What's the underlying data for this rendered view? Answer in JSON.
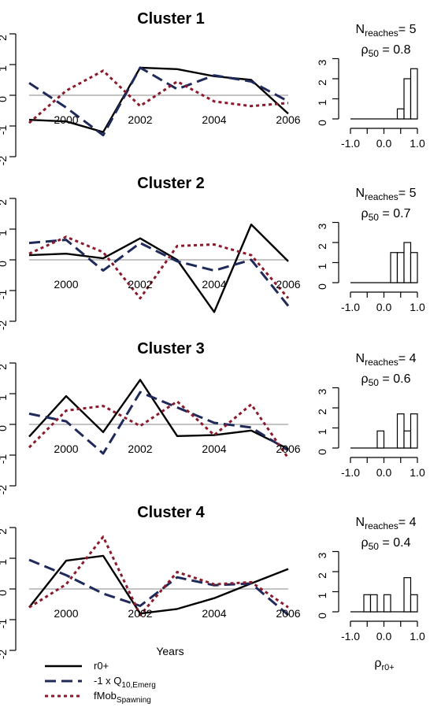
{
  "chart_data": [
    {
      "type": "line",
      "title": "Cluster 1",
      "x": [
        1999,
        2000,
        2001,
        2002,
        2003,
        2004,
        2005,
        2006
      ],
      "series": [
        {
          "key": "r0",
          "values": [
            -0.8,
            -0.85,
            -1.2,
            0.9,
            0.85,
            0.62,
            0.5,
            -0.6
          ]
        },
        {
          "key": "q10",
          "values": [
            0.4,
            -0.4,
            -1.3,
            0.9,
            0.2,
            0.65,
            0.45,
            -0.2
          ]
        },
        {
          "key": "fmob",
          "values": [
            -0.9,
            0.15,
            0.8,
            -0.35,
            0.45,
            -0.2,
            -0.35,
            -0.25
          ]
        }
      ],
      "xticks": [
        2000,
        2002,
        2004,
        2006
      ],
      "yticks": [
        -2,
        -1,
        0,
        1,
        2
      ],
      "xlim": [
        1999,
        2006
      ],
      "ylim": [
        -2,
        2
      ],
      "n_reaches_value": "5",
      "rho50_value": "0.8",
      "hist": {
        "bins": [
          [
            0.4,
            0.6
          ],
          [
            0.6,
            0.8
          ],
          [
            0.8,
            1.0
          ]
        ],
        "values": [
          0.5,
          2.0,
          2.5
        ],
        "xlim": [
          -1.0,
          1.0
        ],
        "ylim": [
          0,
          3
        ],
        "xticks": [
          "-1.0",
          "0.0",
          "1.0"
        ],
        "yticks": [
          0,
          1,
          2,
          3
        ]
      }
    },
    {
      "type": "line",
      "title": "Cluster 2",
      "x": [
        1999,
        2000,
        2001,
        2002,
        2003,
        2004,
        2005,
        2006
      ],
      "series": [
        {
          "key": "r0",
          "values": [
            0.15,
            0.2,
            0.05,
            0.7,
            0.0,
            -1.7,
            1.15,
            -0.05
          ]
        },
        {
          "key": "q10",
          "values": [
            0.55,
            0.65,
            -0.35,
            0.55,
            -0.05,
            -0.35,
            0.0,
            -1.5
          ]
        },
        {
          "key": "fmob",
          "values": [
            0.2,
            0.75,
            0.25,
            -1.25,
            0.45,
            0.5,
            0.15,
            -1.25
          ]
        }
      ],
      "xticks": [
        2000,
        2002,
        2004,
        2006
      ],
      "yticks": [
        -2,
        -1,
        0,
        1,
        2
      ],
      "xlim": [
        1999,
        2006
      ],
      "ylim": [
        -2,
        2
      ],
      "n_reaches_value": "5",
      "rho50_value": "0.7",
      "hist": {
        "bins": [
          [
            0.2,
            0.4
          ],
          [
            0.4,
            0.6
          ],
          [
            0.6,
            0.8
          ],
          [
            0.8,
            1.0
          ]
        ],
        "values": [
          1.5,
          1.5,
          2.0,
          1.5
        ],
        "xlim": [
          -1.0,
          1.0
        ],
        "ylim": [
          0,
          3
        ],
        "xticks": [
          "-1.0",
          "0.0",
          "1.0"
        ],
        "yticks": [
          0,
          1,
          2,
          3
        ]
      }
    },
    {
      "type": "line",
      "title": "Cluster 3",
      "x": [
        1999,
        2000,
        2001,
        2002,
        2003,
        2004,
        2005,
        2006
      ],
      "series": [
        {
          "key": "r0",
          "values": [
            -0.4,
            0.92,
            -0.25,
            1.45,
            -0.38,
            -0.35,
            -0.2,
            -0.8
          ]
        },
        {
          "key": "q10",
          "values": [
            0.35,
            0.1,
            -0.95,
            1.05,
            0.55,
            0.05,
            -0.1,
            -0.85
          ]
        },
        {
          "key": "fmob",
          "values": [
            -0.75,
            0.45,
            0.6,
            -0.05,
            0.75,
            -0.35,
            0.65,
            -1.1
          ]
        }
      ],
      "xticks": [
        2000,
        2002,
        2004,
        2006
      ],
      "yticks": [
        -2,
        -1,
        0,
        1,
        2
      ],
      "xlim": [
        1999,
        2006
      ],
      "ylim": [
        -2,
        2
      ],
      "n_reaches_value": "4",
      "rho50_value": "0.6",
      "hist": {
        "bins": [
          [
            -0.2,
            0.0
          ],
          [
            0.0,
            0.2
          ],
          [
            0.2,
            0.4
          ],
          [
            0.4,
            0.6
          ],
          [
            0.6,
            0.8
          ],
          [
            0.8,
            1.0
          ]
        ],
        "values": [
          0.85,
          0,
          0,
          1.7,
          0.85,
          1.7
        ],
        "xlim": [
          -1.0,
          1.0
        ],
        "ylim": [
          0,
          3
        ],
        "xticks": [
          "-1.0",
          "0.0",
          "1.0"
        ],
        "yticks": [
          0,
          1,
          2,
          3
        ]
      }
    },
    {
      "type": "line",
      "title": "Cluster 4",
      "x": [
        1999,
        2000,
        2001,
        2002,
        2003,
        2004,
        2005,
        2006
      ],
      "series": [
        {
          "key": "r0",
          "values": [
            -0.6,
            0.92,
            1.08,
            -0.8,
            -0.65,
            -0.3,
            0.18,
            0.65
          ]
        },
        {
          "key": "q10",
          "values": [
            0.95,
            0.45,
            -0.15,
            -0.55,
            0.38,
            0.12,
            0.18,
            -0.85
          ]
        },
        {
          "key": "fmob",
          "values": [
            -0.6,
            0.15,
            1.7,
            -0.85,
            0.55,
            0.15,
            0.22,
            -0.6
          ]
        }
      ],
      "xticks": [
        2000,
        2002,
        2004,
        2006
      ],
      "yticks": [
        -2,
        -1,
        0,
        1,
        2
      ],
      "xlim": [
        1999,
        2006
      ],
      "ylim": [
        -2,
        2
      ],
      "xlabel": "Years",
      "n_reaches_value": "4",
      "rho50_value": "0.4",
      "hist": {
        "bins": [
          [
            -0.6,
            -0.4
          ],
          [
            -0.4,
            -0.2
          ],
          [
            -0.2,
            0.0
          ],
          [
            0.0,
            0.2
          ],
          [
            0.2,
            0.4
          ],
          [
            0.4,
            0.6
          ],
          [
            0.6,
            0.8
          ],
          [
            0.8,
            1.0
          ]
        ],
        "values": [
          0.85,
          0.85,
          0,
          0.85,
          0,
          0,
          1.7,
          0.85
        ],
        "xlim": [
          -1.0,
          1.0
        ],
        "ylim": [
          0,
          3
        ],
        "xticks": [
          "-1.0",
          "0.0",
          "1.0"
        ],
        "yticks": [
          0,
          1,
          2,
          3
        ],
        "xlabel_main": "ρ",
        "xlabel_sub": "r0+"
      }
    }
  ],
  "stat_labels": {
    "n_main": "N",
    "n_sub": "reaches",
    "n_eq": "= ",
    "rho_main": "ρ",
    "rho_sub": "50",
    "rho_eq": " = "
  },
  "legend": [
    {
      "key": "r0",
      "label_main": "r0+",
      "label_sub": ""
    },
    {
      "key": "q10",
      "label_main": "-1 x Q",
      "label_sub": "10,Emerg"
    },
    {
      "key": "fmob",
      "label_main": "fMob",
      "label_sub": "Spawning"
    }
  ],
  "colors": {
    "r0": "#000000",
    "q10": "#1f2a5a",
    "fmob": "#8b1a2c",
    "zero_line": "#a0a0a0"
  }
}
